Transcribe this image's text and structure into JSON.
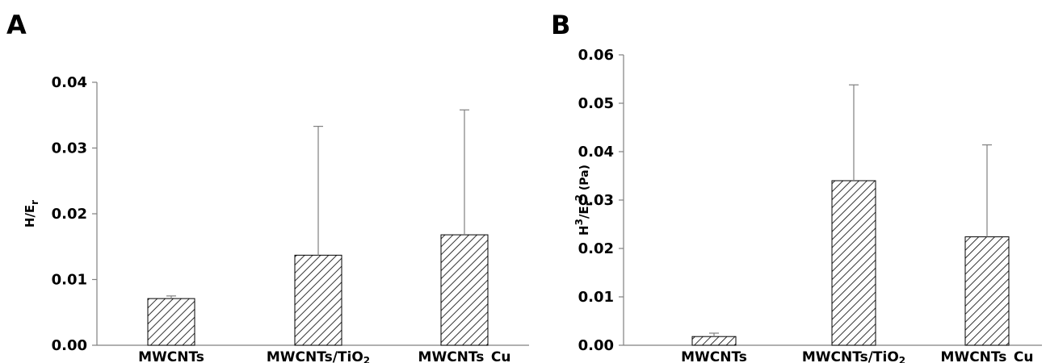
{
  "chart_data": [
    {
      "panel": "A",
      "type": "bar",
      "ylabel_main": "H/E",
      "ylabel_sub": "r",
      "ylabel_sup": "",
      "ylabel_unit": "",
      "ylim": [
        0,
        0.04
      ],
      "yticks": [
        0.0,
        0.01,
        0.02,
        0.03,
        0.04
      ],
      "ytick_labels": [
        "0.00",
        "0.01",
        "0.02",
        "0.03",
        "0.04"
      ],
      "categories": [
        {
          "main": "MWCNTs",
          "sub": ""
        },
        {
          "main": "MWCNTs/TiO",
          "sub": "2"
        },
        {
          "main": "MWCNTs_Cu",
          "sub": ""
        }
      ],
      "values": [
        0.0071,
        0.0137,
        0.0168
      ],
      "error_upper": [
        0.0075,
        0.0333,
        0.0358
      ],
      "bar_pattern": "diagonal-hatch",
      "grid": false
    },
    {
      "panel": "B",
      "type": "bar",
      "ylabel_main": "H",
      "ylabel_sup": "3",
      "ylabel_mid": "/E",
      "ylabel_sub": "r",
      "ylabel_sup2": "2",
      "ylabel_unit": "(Pa)",
      "ylim": [
        0,
        0.06
      ],
      "yticks": [
        0.0,
        0.01,
        0.02,
        0.03,
        0.04,
        0.05,
        0.06
      ],
      "ytick_labels": [
        "0.00",
        "0.01",
        "0.02",
        "0.03",
        "0.04",
        "0.05",
        "0.06"
      ],
      "categories": [
        {
          "main": "MWCNTs",
          "sub": ""
        },
        {
          "main": "MWCNTs/TiO",
          "sub": "2"
        },
        {
          "main": "MWCNTs_Cu",
          "sub": ""
        }
      ],
      "values": [
        0.0018,
        0.034,
        0.0224
      ],
      "error_upper": [
        0.0025,
        0.0538,
        0.0414
      ],
      "bar_pattern": "diagonal-hatch",
      "grid": false
    }
  ]
}
